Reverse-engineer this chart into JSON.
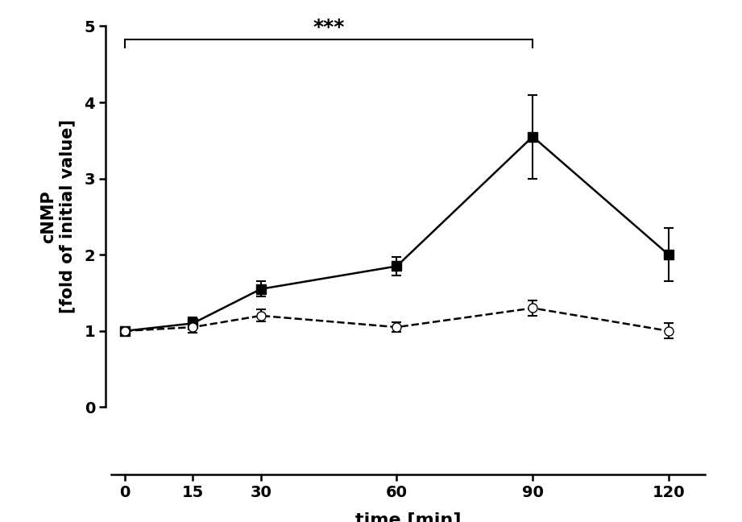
{
  "x": [
    0,
    15,
    30,
    60,
    90,
    120
  ],
  "solid_y": [
    1.0,
    1.1,
    1.55,
    1.85,
    3.55,
    2.0
  ],
  "solid_yerr": [
    0.05,
    0.08,
    0.1,
    0.12,
    0.55,
    0.35
  ],
  "dashed_y": [
    1.0,
    1.05,
    1.2,
    1.05,
    1.3,
    1.0
  ],
  "dashed_yerr": [
    0.05,
    0.07,
    0.08,
    0.06,
    0.1,
    0.1
  ],
  "xlabel": "time [min]",
  "ylabel": "cNMP\n[fold of initial value]",
  "ylim": [
    0,
    5
  ],
  "yticks": [
    0,
    1,
    2,
    3,
    4,
    5
  ],
  "xticks": [
    0,
    15,
    30,
    60,
    90,
    120
  ],
  "significance_text": "***",
  "sig_x1": 0,
  "sig_x2": 90,
  "sig_y": 4.82,
  "background_color": "#ffffff",
  "line_color": "#000000",
  "capsize": 4,
  "linewidth": 1.8,
  "markersize": 8,
  "xlabel_fontsize": 16,
  "ylabel_fontsize": 15,
  "tick_labelsize": 14,
  "sig_fontsize": 18
}
